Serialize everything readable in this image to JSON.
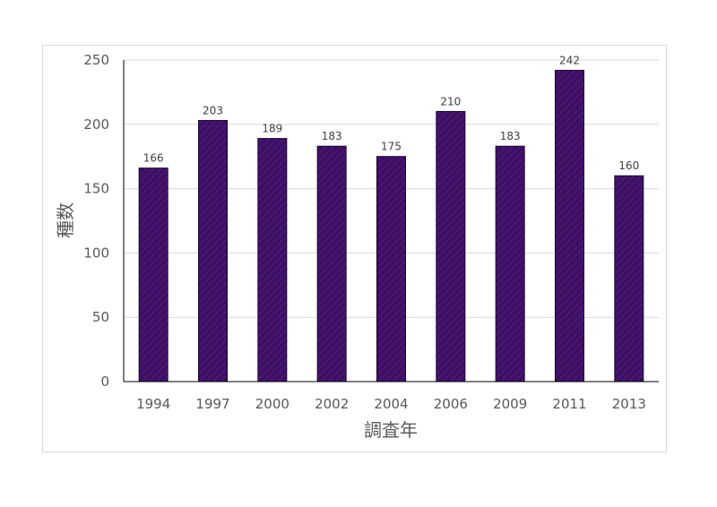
{
  "chart_data": {
    "type": "bar",
    "categories": [
      "1994",
      "1997",
      "2000",
      "2002",
      "2004",
      "2006",
      "2009",
      "2011",
      "2013"
    ],
    "values": [
      166,
      203,
      189,
      183,
      175,
      210,
      183,
      242,
      160
    ],
    "data_labels": [
      "166",
      "203",
      "189",
      "183",
      "175",
      "210",
      "183",
      "242",
      "160"
    ],
    "xlabel": "調査年",
    "ylabel": "種数",
    "ylim": [
      0,
      250
    ],
    "yticks": [
      0,
      50,
      100,
      150,
      200,
      250
    ],
    "ytick_labels": [
      "0",
      "50",
      "100",
      "150",
      "200",
      "250"
    ],
    "grid": true,
    "legend": "none",
    "colors": {
      "bar_fill": "#3d0f63",
      "bar_texture": "#5a2590",
      "bar_stroke": "#1a0530",
      "grid": "#d9d9d9",
      "axis": "#000000"
    }
  }
}
